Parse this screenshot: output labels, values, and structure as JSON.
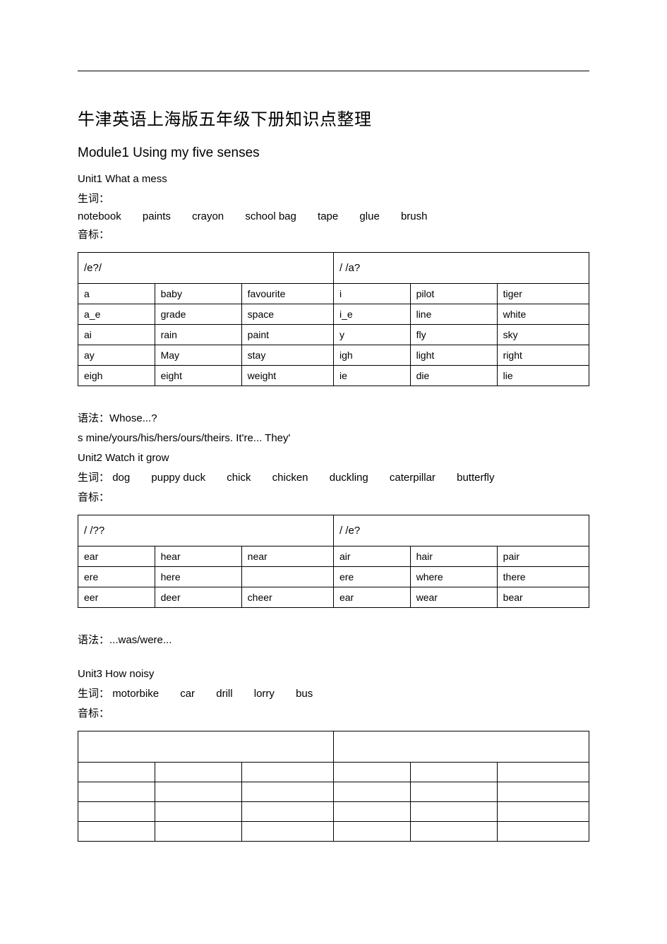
{
  "title": "牛津英语上海版五年级下册知识点整理",
  "module": "Module1  Using  my  five  senses",
  "unit1": {
    "heading": "Unit1  What  a  mess",
    "vocab_label": "生词：",
    "vocab_words": [
      "notebook",
      "paints",
      "crayon",
      "school  bag",
      "tape",
      "glue",
      "brush"
    ],
    "phonetic_label": "音标：",
    "table": {
      "left_header": "/e?/",
      "right_header": "/  /a?",
      "rows": [
        [
          "a",
          "baby",
          "favourite",
          "i",
          "pilot",
          "tiger"
        ],
        [
          "a_e",
          "grade",
          "space",
          "i_e",
          "line",
          "white"
        ],
        [
          "ai",
          "rain",
          "paint",
          "y",
          "fly",
          "sky"
        ],
        [
          "ay",
          "May",
          "stay",
          "igh",
          "light",
          "right"
        ],
        [
          "eigh",
          "eight",
          "weight",
          "ie",
          "die",
          "lie"
        ]
      ]
    },
    "grammar_label": "语法：",
    "grammar_text": "Whose...?",
    "grammar_line2": "s  mine/yours/his/hers/ours/theirs.  It're...  They'"
  },
  "unit2": {
    "heading": "Unit2  Watch  it  grow",
    "vocab_label": "生词：",
    "vocab_words": [
      "dog",
      "puppy  duck",
      "chick",
      "chicken",
      "duckling",
      "caterpillar",
      "butterfly"
    ],
    "phonetic_label": "音标：",
    "table": {
      "left_header": "/  /??",
      "right_header": "/  /e?",
      "rows": [
        [
          "ear",
          "hear",
          "near",
          "air",
          "hair",
          "pair"
        ],
        [
          "ere",
          "here",
          "",
          "ere",
          "where",
          "there"
        ],
        [
          "eer",
          "deer",
          "cheer",
          "ear",
          "wear",
          "bear"
        ]
      ]
    },
    "grammar_label": "语法：",
    "grammar_text": "...was/were..."
  },
  "unit3": {
    "heading": "Unit3  How  noisy",
    "vocab_label": "生词：",
    "vocab_words": [
      "motorbike",
      "car",
      "drill",
      "lorry",
      "bus"
    ],
    "phonetic_label": "音标：",
    "table": {
      "left_header": "",
      "right_header": "",
      "rows": [
        [
          "",
          "",
          "",
          "",
          "",
          ""
        ],
        [
          "",
          "",
          "",
          "",
          "",
          ""
        ],
        [
          "",
          "",
          "",
          "",
          "",
          ""
        ],
        [
          "",
          "",
          "",
          "",
          "",
          ""
        ]
      ]
    }
  }
}
